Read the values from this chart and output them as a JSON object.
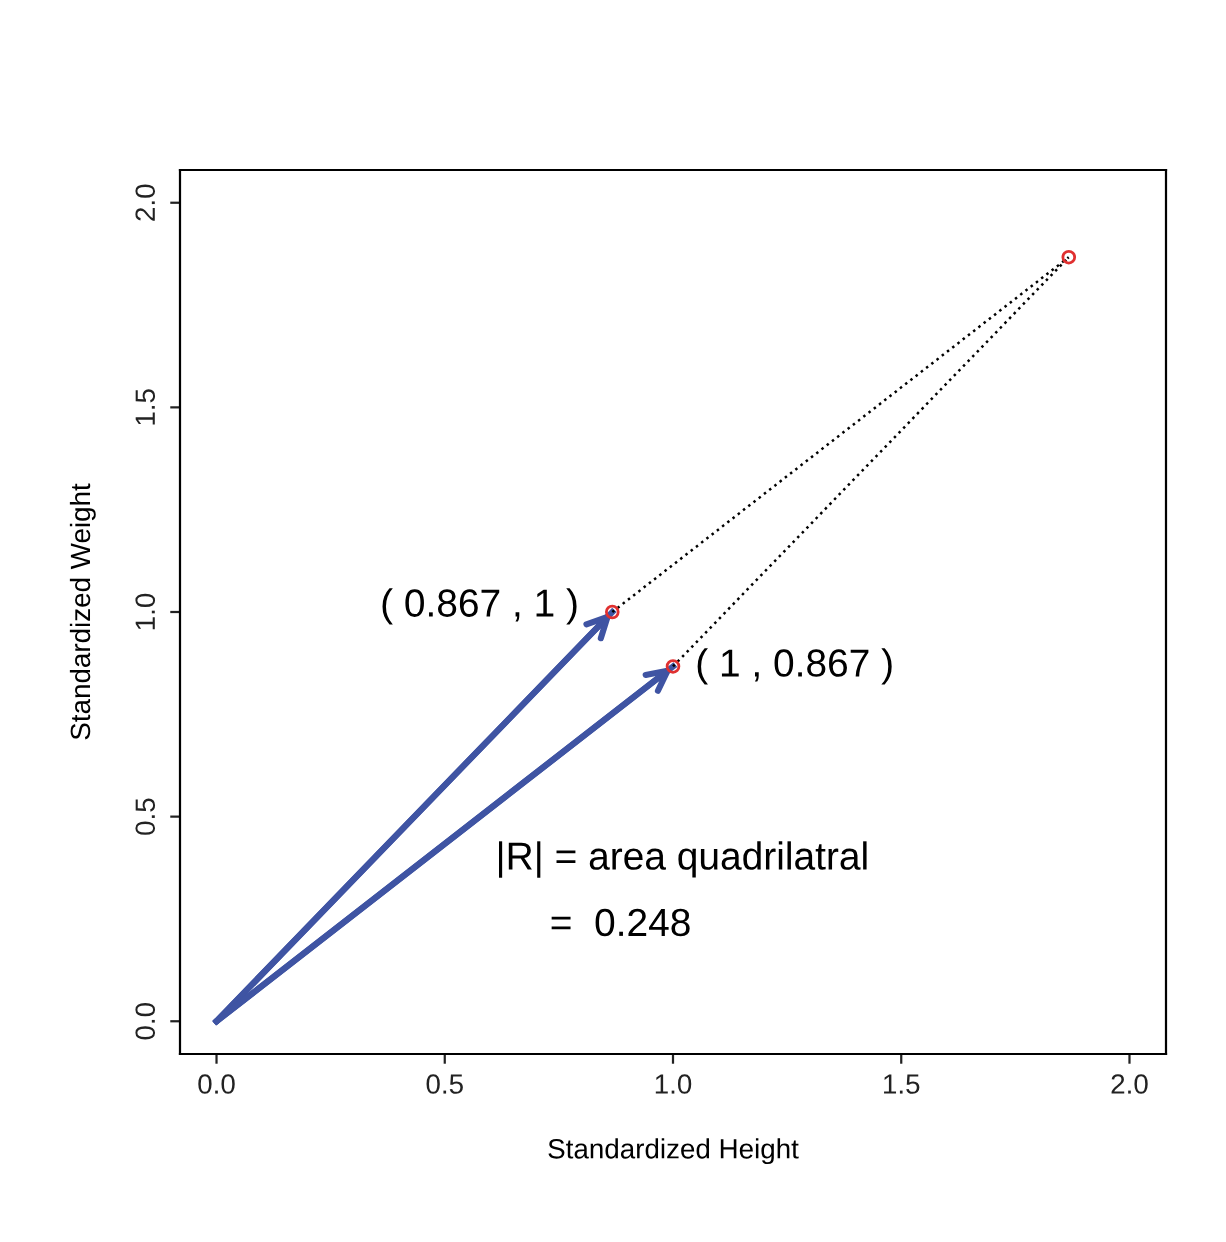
{
  "chart_data": {
    "type": "scatter",
    "xlabel": "Standardized Height",
    "ylabel": "Standardized Weight",
    "xlim": [
      -0.08,
      2.08
    ],
    "ylim": [
      -0.08,
      2.08
    ],
    "xticks": [
      {
        "value": 0,
        "label": "0.0"
      },
      0.5,
      {
        "value": 1,
        "label": "1.0"
      },
      1.5,
      {
        "value": 2,
        "label": "2.0"
      }
    ],
    "yticks": [
      {
        "value": 0,
        "label": "0.0"
      },
      0.5,
      {
        "value": 1,
        "label": "1.0"
      },
      1.5,
      {
        "value": 2,
        "label": "2.0"
      }
    ],
    "grid": false,
    "legend": false,
    "series": [
      {
        "type": "line",
        "line_style": "solid",
        "color": "#3f54a3",
        "x": [
          0,
          0.867
        ],
        "values": [
          0,
          1
        ]
      },
      {
        "type": "line",
        "line_style": "solid",
        "color": "#3f54a3",
        "x": [
          0,
          1
        ],
        "values": [
          0,
          0.867
        ]
      },
      {
        "type": "line",
        "line_style": "dotted",
        "color": "#000000",
        "x": [
          0.867,
          1.867
        ],
        "values": [
          1,
          1.867
        ]
      },
      {
        "type": "line",
        "line_style": "dotted",
        "color": "#000000",
        "x": [
          1,
          1.867
        ],
        "values": [
          0.867,
          1.867
        ]
      },
      {
        "marker": "circle",
        "color": "#e03030",
        "x": [
          0.867,
          1,
          1.867
        ],
        "values": [
          1,
          0.867,
          1.867
        ]
      }
    ],
    "annotations": [
      {
        "text": "( 0.867 , 1 )",
        "x": 0.867,
        "y": 1
      },
      {
        "text": "( 1 , 0.867 )",
        "x": 1,
        "y": 0.867
      },
      "|R| = area quadrilatral",
      "=  0.248"
    ]
  }
}
